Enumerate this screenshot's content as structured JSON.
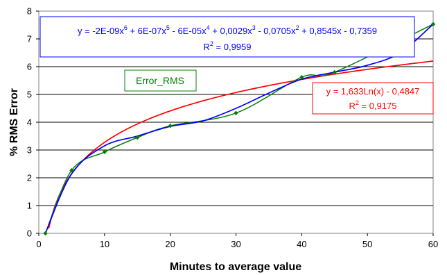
{
  "chart_data": {
    "type": "scatter",
    "title": "",
    "xlabel": "Minutes to average value",
    "ylabel": "% RMS Error",
    "xlim": [
      0,
      60
    ],
    "ylim": [
      0,
      8
    ],
    "x_ticks": [
      "0",
      "10",
      "20",
      "30",
      "40",
      "50",
      "60"
    ],
    "y_ticks": [
      "0",
      "1",
      "2",
      "3",
      "4",
      "5",
      "6",
      "7",
      "8"
    ],
    "grid": "horizontal",
    "series": [
      {
        "name": "Error_RMS",
        "color": "#008000",
        "marker": "diamond",
        "smoothed": true,
        "x": [
          1,
          5,
          10,
          15,
          20,
          30,
          40,
          45,
          60
        ],
        "y": [
          0.0,
          2.27,
          2.93,
          3.45,
          3.87,
          4.33,
          5.62,
          5.8,
          7.53
        ]
      }
    ],
    "trendlines": [
      {
        "type": "polynomial",
        "order": 6,
        "color": "#0000FF",
        "coefficients": [
          -0.7359,
          0.8545,
          -0.0705,
          0.0029,
          -6e-05,
          6e-07,
          -2e-09
        ],
        "fit_x": [
          1,
          5,
          10,
          15,
          20,
          25,
          30,
          35,
          40,
          45,
          50,
          55,
          60
        ],
        "fit_y": [
          0.0,
          2.15,
          3.15,
          3.5,
          3.85,
          4.05,
          4.5,
          5.05,
          5.55,
          5.8,
          6.05,
          6.5,
          7.53
        ],
        "equation_parts": {
          "p1": "y = -2E-09x",
          "e1": "6",
          "p2": " + 6E-07x",
          "e2": "5",
          "p3": " - 6E-05x",
          "e3": "4",
          "p4": " + 0,0029x",
          "e4": "3",
          "p5": " - 0,0705x",
          "e5": "2",
          "p6": " + 0,8545x - 0,7359"
        },
        "r2_parts": {
          "p1": "R",
          "e1": "2",
          "p2": " = 0,9959"
        }
      },
      {
        "type": "logarithmic",
        "color": "#FF0000",
        "a": 1.633,
        "b": -0.4847,
        "equation": "y = 1,633Ln(x) - 0,4847",
        "r2_parts": {
          "p1": "R",
          "e1": "2",
          "p2": " = 0,9175"
        }
      }
    ],
    "legend": {
      "entries": [
        "Error_RMS"
      ],
      "position": "upper-left"
    }
  }
}
